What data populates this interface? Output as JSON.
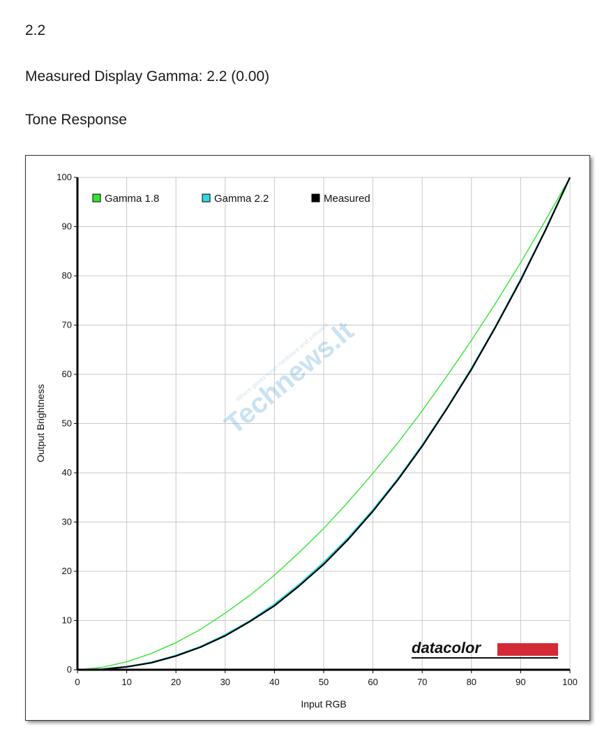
{
  "header": {
    "value": "2.2",
    "measured": "Measured Display Gamma: 2.2 (0.00)",
    "section": "Tone Response"
  },
  "chart_data": {
    "type": "line",
    "xlabel": "Input RGB",
    "ylabel": "Output Brightness",
    "xlim": [
      0,
      100
    ],
    "ylim": [
      0,
      100
    ],
    "x_ticks": [
      0,
      10,
      20,
      30,
      40,
      50,
      60,
      70,
      80,
      90,
      100
    ],
    "y_ticks": [
      0,
      10,
      20,
      30,
      40,
      50,
      60,
      70,
      80,
      90,
      100
    ],
    "grid": true,
    "legend_position": "top-left",
    "series": [
      {
        "name": "Gamma 1.8",
        "color": "#33e633",
        "x": [
          0,
          5,
          10,
          15,
          20,
          25,
          30,
          35,
          40,
          45,
          50,
          55,
          60,
          65,
          70,
          75,
          80,
          85,
          90,
          95,
          100
        ],
        "y": [
          0,
          0.5,
          1.6,
          3.3,
          5.5,
          8.2,
          11.5,
          15.1,
          19.2,
          23.8,
          28.7,
          34.1,
          39.9,
          46.0,
          52.6,
          59.6,
          66.9,
          74.6,
          82.7,
          91.2,
          100
        ]
      },
      {
        "name": "Gamma 2.2",
        "color": "#30d8e0",
        "x": [
          0,
          5,
          10,
          15,
          20,
          25,
          30,
          35,
          40,
          45,
          50,
          55,
          60,
          65,
          70,
          75,
          80,
          85,
          90,
          95,
          100
        ],
        "y": [
          0,
          0.1,
          0.6,
          1.5,
          2.9,
          4.7,
          7.1,
          9.9,
          13.3,
          17.3,
          21.8,
          26.8,
          32.5,
          38.7,
          45.6,
          53.1,
          61.2,
          69.9,
          79.3,
          89.3,
          100
        ]
      },
      {
        "name": "Measured",
        "color": "#000000",
        "x": [
          0,
          5,
          10,
          15,
          20,
          25,
          30,
          35,
          40,
          45,
          50,
          55,
          60,
          65,
          70,
          75,
          80,
          85,
          90,
          95,
          100
        ],
        "y": [
          0,
          0.1,
          0.6,
          1.4,
          2.8,
          4.6,
          6.9,
          9.8,
          13.0,
          17.0,
          21.4,
          26.5,
          32.2,
          38.5,
          45.4,
          53.0,
          61.0,
          69.8,
          79.1,
          89.2,
          100
        ]
      }
    ]
  },
  "logo": {
    "text": "datacolor",
    "bar_color": "#d42a35"
  },
  "watermark": {
    "brand": "Technews.lt",
    "tagline": "Where geeks meet hardware and software"
  }
}
